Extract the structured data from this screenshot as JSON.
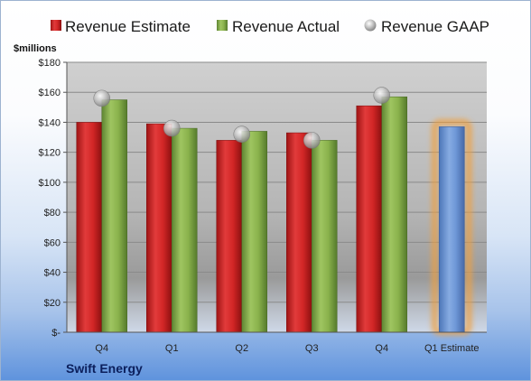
{
  "company": "Swift Energy",
  "chart_data": {
    "type": "bar",
    "unit_label": "$millions",
    "categories": [
      "Q4",
      "Q1",
      "Q2",
      "Q3",
      "Q4",
      "Q1 Estimate"
    ],
    "series": [
      {
        "name": "Revenue Estimate",
        "color": "#d42a2a",
        "values": [
          140,
          139,
          128,
          133,
          151,
          null
        ]
      },
      {
        "name": "Revenue Actual",
        "color": "#8cb44f",
        "values": [
          155,
          136,
          134,
          128,
          157,
          137
        ]
      },
      {
        "name": "Revenue GAAP",
        "type": "scatter",
        "color": "#b8b8b8",
        "values": [
          156,
          136,
          132,
          128,
          158,
          null
        ]
      }
    ],
    "projection_color": "#6f98d8",
    "ylim": [
      0,
      180
    ],
    "yticks": [
      0,
      20,
      40,
      60,
      80,
      100,
      120,
      140,
      160,
      180
    ],
    "ytick_labels": [
      "$-",
      "$20",
      "$40",
      "$60",
      "$80",
      "$100",
      "$120",
      "$140",
      "$160",
      "$180"
    ],
    "grid": true,
    "legend_position": "top"
  }
}
